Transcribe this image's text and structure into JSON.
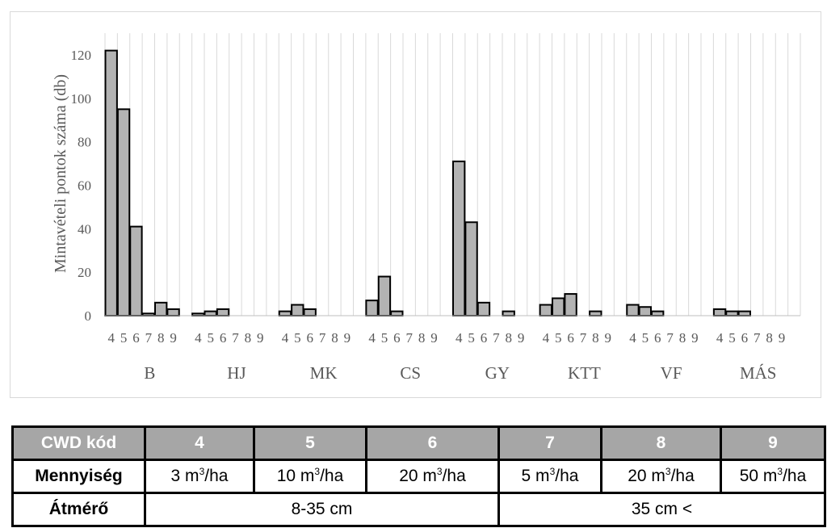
{
  "chart_data": {
    "type": "bar",
    "ylabel": "Mintavételi pontok száma (db)",
    "ylim": [
      0,
      130
    ],
    "yticks": [
      0,
      20,
      40,
      60,
      80,
      100,
      120
    ],
    "sub_categories": [
      "4",
      "5",
      "6",
      "7",
      "8",
      "9"
    ],
    "groups": [
      {
        "name": "B",
        "values": [
          122,
          95,
          41,
          1,
          6,
          3
        ]
      },
      {
        "name": "HJ",
        "values": [
          1,
          2,
          3,
          0,
          0,
          0
        ]
      },
      {
        "name": "MK",
        "values": [
          2,
          5,
          3,
          0,
          0,
          0
        ]
      },
      {
        "name": "CS",
        "values": [
          7,
          18,
          2,
          0,
          0,
          0
        ]
      },
      {
        "name": "GY",
        "values": [
          71,
          43,
          6,
          0,
          2,
          0
        ]
      },
      {
        "name": "KTT",
        "values": [
          5,
          8,
          10,
          0,
          2,
          0
        ]
      },
      {
        "name": "VF",
        "values": [
          5,
          4,
          2,
          0,
          0,
          0
        ]
      },
      {
        "name": "MÁS",
        "values": [
          3,
          2,
          2,
          0,
          0,
          0
        ]
      }
    ],
    "bar_color": "#b3b3b3",
    "grid": "vertical"
  },
  "legend_table": {
    "header_label": "CWD kód",
    "codes": [
      "4",
      "5",
      "6",
      "7",
      "8",
      "9"
    ],
    "quantity_label": "Mennyiség",
    "quantities": [
      {
        "amount": "3 m",
        "exp": "3",
        "unit": "/ha"
      },
      {
        "amount": "10 m",
        "exp": "3",
        "unit": "/ha"
      },
      {
        "amount": "20 m",
        "exp": "3",
        "unit": "/ha"
      },
      {
        "amount": "5 m",
        "exp": "3",
        "unit": "/ha"
      },
      {
        "amount": "20 m",
        "exp": "3",
        "unit": "/ha"
      },
      {
        "amount": "50 m",
        "exp": "3",
        "unit": "/ha"
      }
    ],
    "diameter_label": "Átmérő",
    "diameter_small": "8-35 cm",
    "diameter_large": "35 cm <"
  }
}
